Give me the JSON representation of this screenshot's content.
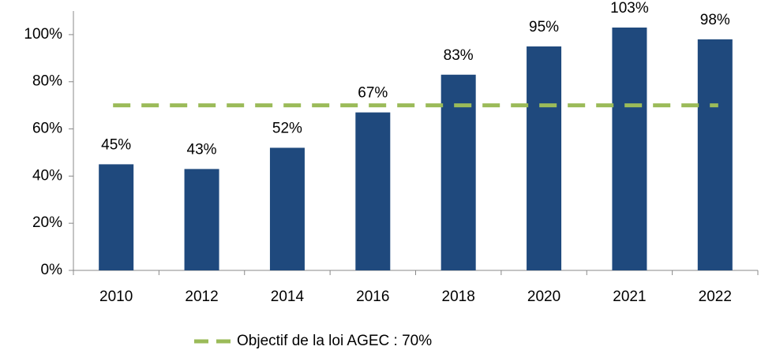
{
  "chart_data": {
    "type": "bar",
    "categories": [
      "2010",
      "2012",
      "2014",
      "2016",
      "2018",
      "2020",
      "2021",
      "2022"
    ],
    "values": [
      45,
      43,
      52,
      67,
      83,
      95,
      103,
      98
    ],
    "value_labels": [
      "45%",
      "43%",
      "52%",
      "67%",
      "83%",
      "95%",
      "103%",
      "98%"
    ],
    "color": "#1f497d",
    "target": {
      "name": "Objectif de la loi AGEC : 70%",
      "value": 70,
      "color": "#9bbb59"
    },
    "ylim": [
      0,
      110
    ],
    "yticks": [
      {
        "value": 0,
        "label": "0%"
      },
      {
        "value": 20,
        "label": "20%"
      },
      {
        "value": 40,
        "label": "40%"
      },
      {
        "value": 60,
        "label": "60%"
      },
      {
        "value": 80,
        "label": "80%"
      },
      {
        "value": 100,
        "label": "100%"
      }
    ],
    "grid": false
  }
}
